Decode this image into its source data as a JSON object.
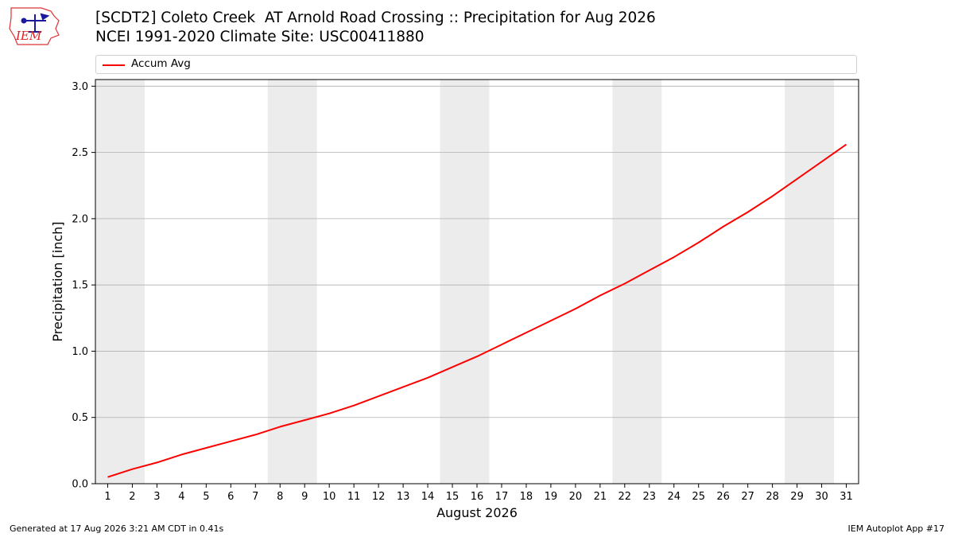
{
  "header": {
    "title_line1": "[SCDT2] Coleto Creek  AT Arnold Road Crossing :: Precipitation for Aug 2026",
    "title_line2": "NCEI 1991-2020 Climate Site: USC00411880"
  },
  "logo": {
    "text": "IEM"
  },
  "footer": {
    "generated": "Generated at 17 Aug 2026 3:21 AM CDT in 0.41s",
    "app": "IEM Autoplot App #17"
  },
  "colors": {
    "line": "#ff0000",
    "weekend_band": "#ececec",
    "grid": "#b0b0b0"
  },
  "chart_data": {
    "type": "line",
    "title": "[SCDT2] Coleto Creek  AT Arnold Road Crossing :: Precipitation for Aug 2026",
    "subtitle": "NCEI 1991-2020 Climate Site: USC00411880",
    "xlabel": "August 2026",
    "ylabel": "Precipitation [inch]",
    "xlim": [
      0.5,
      31.5
    ],
    "ylim": [
      0,
      3.05
    ],
    "x_ticks": [
      1,
      2,
      3,
      4,
      5,
      6,
      7,
      8,
      9,
      10,
      11,
      12,
      13,
      14,
      15,
      16,
      17,
      18,
      19,
      20,
      21,
      22,
      23,
      24,
      25,
      26,
      27,
      28,
      29,
      30,
      31
    ],
    "y_ticks": [
      "0.0",
      "0.5",
      "1.0",
      "1.5",
      "2.0",
      "2.5",
      "3.0"
    ],
    "y_tick_values": [
      0,
      0.5,
      1.0,
      1.5,
      2.0,
      2.5,
      3.0
    ],
    "grid": "horizontal",
    "legend_position": "top",
    "shaded_weekends": [
      [
        1,
        2
      ],
      [
        8,
        9
      ],
      [
        15,
        16
      ],
      [
        22,
        23
      ],
      [
        29,
        30
      ]
    ],
    "series": [
      {
        "name": "Accum Avg",
        "x": [
          1,
          2,
          3,
          4,
          5,
          6,
          7,
          8,
          9,
          10,
          11,
          12,
          13,
          14,
          15,
          16,
          17,
          18,
          19,
          20,
          21,
          22,
          23,
          24,
          25,
          26,
          27,
          28,
          29,
          30,
          31
        ],
        "values": [
          0.05,
          0.11,
          0.16,
          0.22,
          0.27,
          0.32,
          0.37,
          0.43,
          0.48,
          0.53,
          0.59,
          0.66,
          0.73,
          0.8,
          0.88,
          0.96,
          1.05,
          1.14,
          1.23,
          1.32,
          1.42,
          1.51,
          1.61,
          1.71,
          1.82,
          1.94,
          2.05,
          2.17,
          2.3,
          2.43,
          2.56
        ]
      }
    ]
  }
}
